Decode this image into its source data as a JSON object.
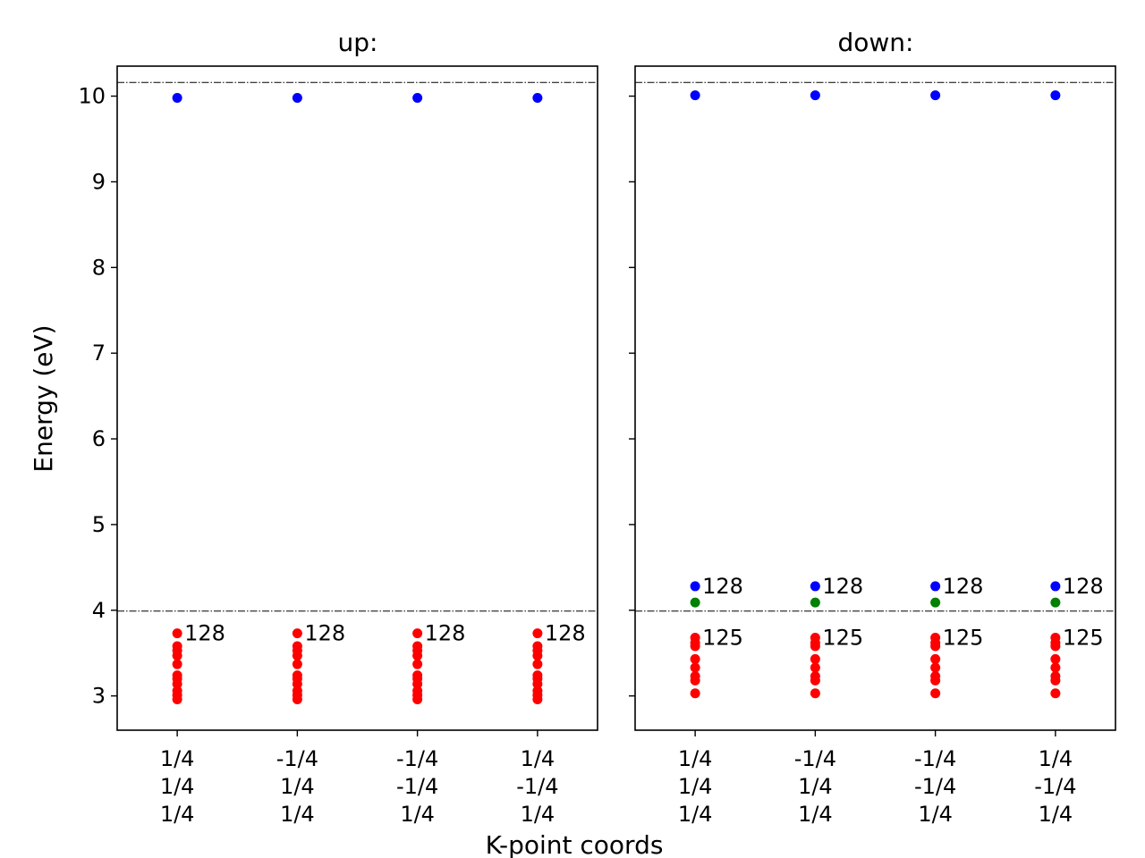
{
  "chart_data": {
    "type": "scatter",
    "ylabel": "Energy (eV)",
    "xlabel": "K-point coords",
    "ylim": [
      2.6,
      10.35
    ],
    "yticks": [
      3,
      4,
      5,
      6,
      7,
      8,
      9,
      10
    ],
    "colors": {
      "occupied": "#ff0000",
      "unoccupied": "#0000ff",
      "partial": "#008000"
    },
    "kpoints": [
      [
        "1/4",
        "1/4",
        "1/4"
      ],
      [
        "-1/4",
        "1/4",
        "1/4"
      ],
      [
        "-1/4",
        "-1/4",
        "1/4"
      ],
      [
        "1/4",
        "-1/4",
        "1/4"
      ]
    ],
    "panels": [
      {
        "title": "up:",
        "reference_lines": [
          10.16,
          3.99
        ],
        "occupied": [
          2.96,
          3.01,
          3.06,
          3.14,
          3.2,
          3.24,
          3.37,
          3.47,
          3.53,
          3.58,
          3.73
        ],
        "partial": [],
        "unoccupied": [
          9.98
        ],
        "annotations": [
          {
            "y": 3.73,
            "text": "128"
          }
        ]
      },
      {
        "title": "down:",
        "reference_lines": [
          10.16,
          3.99
        ],
        "occupied": [
          3.03,
          3.18,
          3.23,
          3.33,
          3.43,
          3.58,
          3.62,
          3.68
        ],
        "partial": [
          4.09
        ],
        "unoccupied": [
          4.28,
          10.01
        ],
        "annotations": [
          {
            "y": 4.28,
            "text": "128"
          },
          {
            "y": 3.68,
            "text": "125"
          }
        ]
      }
    ]
  }
}
